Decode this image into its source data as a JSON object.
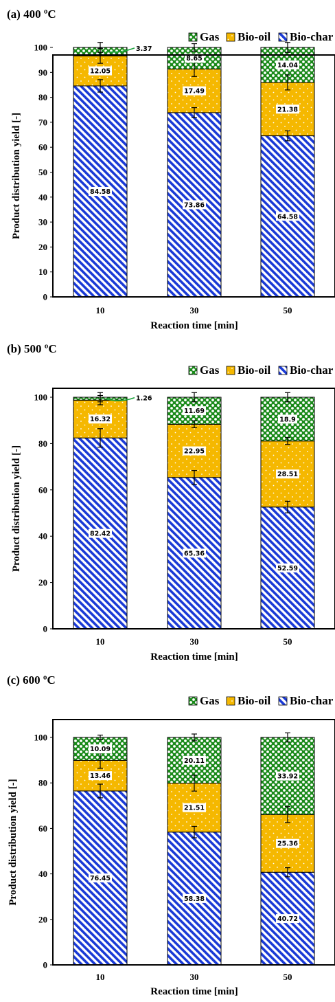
{
  "colors": {
    "bio_char_fg": "#1a3ad6",
    "bio_oil_fg": "#f5b800",
    "gas_fg": "#1a8a1a",
    "label_box": "#ffffff",
    "leader": "#1aa33b"
  },
  "chart_data": [
    {
      "type": "bar",
      "stacked": true,
      "title": "(a) 400 ºC",
      "xlabel": "Reaction time [min]",
      "ylabel": "Product distribution yield [-]",
      "ylim": [
        0,
        100
      ],
      "yticks": [
        0,
        10,
        20,
        30,
        40,
        50,
        60,
        70,
        80,
        90,
        100
      ],
      "categories": [
        "10",
        "30",
        "50"
      ],
      "legend": {
        "position": "top-right",
        "entries": [
          "Gas",
          "Bio-oil",
          "Bio-char"
        ]
      },
      "series": [
        {
          "name": "Bio-char",
          "values": [
            84.58,
            73.86,
            64.58
          ],
          "labels": [
            "84.58",
            "73.86",
            "64.58"
          ],
          "error_high": [
            2.5,
            2.0,
            2.0
          ]
        },
        {
          "name": "Bio-oil",
          "values": [
            12.05,
            17.49,
            21.38
          ],
          "labels": [
            "12.05",
            "17.49",
            "21.38"
          ],
          "error_high": [
            3.0,
            3.0,
            3.0
          ]
        },
        {
          "name": "Gas",
          "values": [
            3.37,
            8.65,
            14.04
          ],
          "labels": [
            "3.37",
            "8.65",
            "14.04"
          ],
          "error_high": [
            2.0,
            1.5,
            2.0
          ]
        }
      ]
    },
    {
      "type": "bar",
      "stacked": true,
      "title": "(b) 500 ºC",
      "xlabel": "Reaction time [min]",
      "ylabel": "Product distribution yield [-]",
      "ylim": [
        0,
        100
      ],
      "yticks": [
        0,
        20,
        40,
        60,
        80,
        100
      ],
      "categories": [
        "10",
        "30",
        "50"
      ],
      "legend": {
        "position": "top-right",
        "entries": [
          "Gas",
          "Bio-oil",
          "Bio-char"
        ]
      },
      "series": [
        {
          "name": "Bio-char",
          "values": [
            82.42,
            65.36,
            52.59
          ],
          "labels": [
            "82.42",
            "65.36",
            "52.59"
          ],
          "error_high": [
            4.0,
            3.0,
            2.5
          ]
        },
        {
          "name": "Bio-oil",
          "values": [
            16.32,
            22.95,
            28.51
          ],
          "labels": [
            "16.32",
            "22.95",
            "28.51"
          ],
          "error_high": [
            2.0,
            1.5,
            1.5
          ]
        },
        {
          "name": "Gas",
          "values": [
            1.26,
            11.69,
            18.9
          ],
          "labels": [
            "1.26",
            "11.69",
            "18.9"
          ],
          "error_high": [
            2.0,
            2.0,
            2.0
          ]
        }
      ]
    },
    {
      "type": "bar",
      "stacked": true,
      "title": "(c) 600 ºC",
      "xlabel": "Reaction time [min]",
      "ylabel": "Product distribution yield [-]",
      "ylim": [
        0,
        100
      ],
      "yticks": [
        0,
        20,
        40,
        60,
        80,
        100
      ],
      "categories": [
        "10",
        "30",
        "50"
      ],
      "legend": {
        "position": "top-right",
        "entries": [
          "Gas",
          "Bio-oil",
          "Bio-char"
        ]
      },
      "series": [
        {
          "name": "Bio-char",
          "values": [
            76.45,
            58.38,
            40.72
          ],
          "labels": [
            "76.45",
            "58.38",
            "40.72"
          ],
          "error_high": [
            3.0,
            2.5,
            2.0
          ]
        },
        {
          "name": "Bio-oil",
          "values": [
            13.46,
            21.51,
            25.36
          ],
          "labels": [
            "13.46",
            "21.51",
            "25.36"
          ],
          "error_high": [
            3.5,
            3.5,
            3.5
          ]
        },
        {
          "name": "Gas",
          "values": [
            10.09,
            20.11,
            33.92
          ],
          "labels": [
            "10.09",
            "20.11",
            "33.92"
          ],
          "error_high": [
            1.0,
            1.5,
            2.0
          ]
        }
      ]
    }
  ]
}
